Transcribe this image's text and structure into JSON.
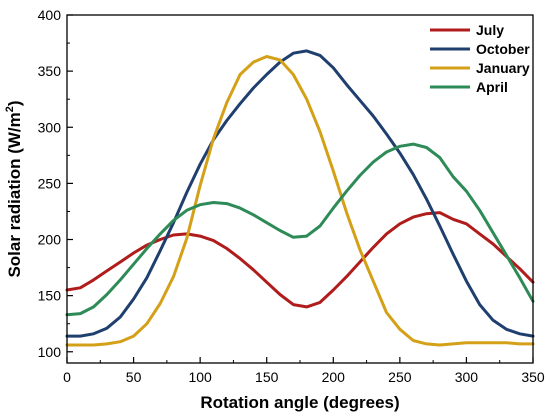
{
  "chart_data": {
    "type": "line",
    "xlabel": "Rotation angle (degrees)",
    "ylabel_main": "Solar radiation (W/m",
    "ylabel_sup": "2",
    "ylabel_close": ")",
    "xlim": [
      0,
      350
    ],
    "ylim": [
      90,
      400
    ],
    "xticks": [
      0,
      50,
      100,
      150,
      200,
      250,
      300,
      350
    ],
    "yticks": [
      100,
      150,
      200,
      250,
      300,
      350,
      400
    ],
    "grid": false,
    "legend_position": "top-right",
    "x": [
      0,
      10,
      20,
      30,
      40,
      50,
      60,
      70,
      80,
      90,
      100,
      110,
      120,
      130,
      140,
      150,
      160,
      170,
      180,
      190,
      200,
      210,
      220,
      230,
      240,
      250,
      260,
      270,
      280,
      290,
      300,
      310,
      320,
      330,
      340,
      350
    ],
    "series": [
      {
        "name": "July",
        "color": "#b01c1c",
        "values": [
          155,
          157,
          164,
          172,
          180,
          188,
          195,
          200,
          204,
          205,
          203,
          199,
          192,
          183,
          173,
          162,
          151,
          142,
          140,
          144,
          155,
          167,
          180,
          193,
          205,
          214,
          220,
          223,
          224,
          218,
          214,
          205,
          196,
          185,
          174,
          162
        ]
      },
      {
        "name": "October",
        "color": "#1f3f6e",
        "values": [
          114,
          114,
          116,
          121,
          131,
          147,
          166,
          190,
          215,
          242,
          267,
          289,
          306,
          321,
          335,
          347,
          358,
          366,
          368,
          364,
          353,
          338,
          324,
          310,
          294,
          277,
          258,
          236,
          212,
          187,
          163,
          142,
          128,
          120,
          116,
          114
        ]
      },
      {
        "name": "January",
        "color": "#d4a018",
        "values": [
          106,
          106,
          106,
          107,
          109,
          114,
          125,
          143,
          167,
          201,
          248,
          290,
          322,
          347,
          358,
          363,
          360,
          347,
          325,
          296,
          261,
          224,
          191,
          163,
          135,
          120,
          110,
          107,
          106,
          107,
          108,
          108,
          108,
          108,
          107,
          107
        ]
      },
      {
        "name": "April",
        "color": "#2e8b57",
        "values": [
          133,
          134,
          140,
          151,
          164,
          178,
          192,
          205,
          217,
          226,
          231,
          233,
          232,
          228,
          222,
          215,
          208,
          202,
          203,
          212,
          228,
          243,
          257,
          269,
          278,
          283,
          285,
          282,
          273,
          256,
          243,
          226,
          206,
          186,
          166,
          145
        ]
      }
    ]
  }
}
